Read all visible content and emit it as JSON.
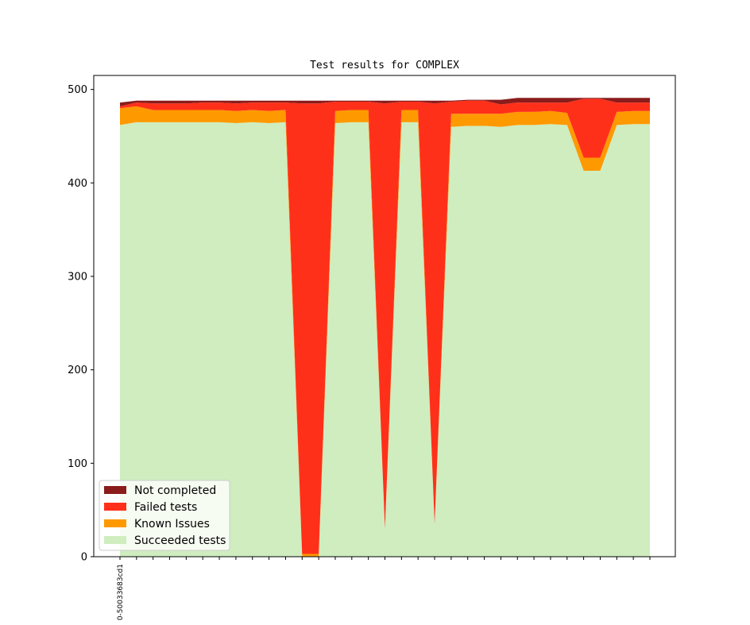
{
  "chart_data": {
    "type": "area",
    "stacked": true,
    "title": "Test results for COMPLEX",
    "xlabel": "",
    "ylabel": "",
    "ylim": [
      0,
      515
    ],
    "yticks": [
      0,
      100,
      200,
      300,
      400,
      500
    ],
    "grid": false,
    "legend_position": "lower-left",
    "x": [
      0,
      1,
      2,
      3,
      4,
      5,
      6,
      7,
      8,
      9,
      10,
      11,
      12,
      13,
      14,
      15,
      16,
      17,
      18,
      19,
      20,
      21,
      22,
      23,
      24,
      25,
      26,
      27,
      28,
      29,
      30,
      31,
      32
    ],
    "xtick_labels": [
      "0-50033683cd1",
      "",
      "",
      "",
      "",
      "",
      "",
      "",
      "",
      "",
      "",
      "",
      "",
      "",
      "",
      "",
      "",
      "",
      "",
      "",
      "",
      "",
      "",
      "",
      "",
      "",
      "",
      "",
      "",
      "",
      "",
      "",
      ""
    ],
    "series": [
      {
        "name": "Succeeded tests",
        "color": "#cfedbf",
        "values": [
          462,
          465,
          465,
          465,
          465,
          465,
          465,
          464,
          465,
          464,
          465,
          0,
          0,
          464,
          465,
          465,
          30,
          465,
          465,
          35,
          460,
          461,
          461,
          460,
          462,
          462,
          463,
          462,
          413,
          413,
          462,
          463,
          463
        ]
      },
      {
        "name": "Known Issues",
        "color": "#ff9900",
        "values": [
          18,
          17,
          13,
          13,
          13,
          13,
          13,
          13,
          13,
          13,
          13,
          3,
          3,
          13,
          13,
          13,
          0,
          13,
          13,
          0,
          14,
          13,
          13,
          14,
          14,
          14,
          14,
          13,
          14,
          14,
          14,
          14,
          14
        ]
      },
      {
        "name": "Failed tests",
        "color": "#ff301a",
        "values": [
          2,
          4,
          7,
          7,
          7,
          8,
          8,
          8,
          8,
          9,
          8,
          482,
          482,
          10,
          9,
          9,
          455,
          9,
          9,
          450,
          13,
          14,
          14,
          10,
          10,
          10,
          9,
          11,
          63,
          63,
          10,
          9,
          9
        ]
      },
      {
        "name": "Not completed",
        "color": "#8b1c1c",
        "values": [
          4,
          2,
          3,
          3,
          3,
          2,
          2,
          3,
          2,
          2,
          2,
          3,
          3,
          1,
          1,
          1,
          3,
          1,
          1,
          3,
          1,
          1,
          1,
          5,
          5,
          5,
          5,
          5,
          1,
          1,
          5,
          5,
          5
        ]
      }
    ]
  }
}
